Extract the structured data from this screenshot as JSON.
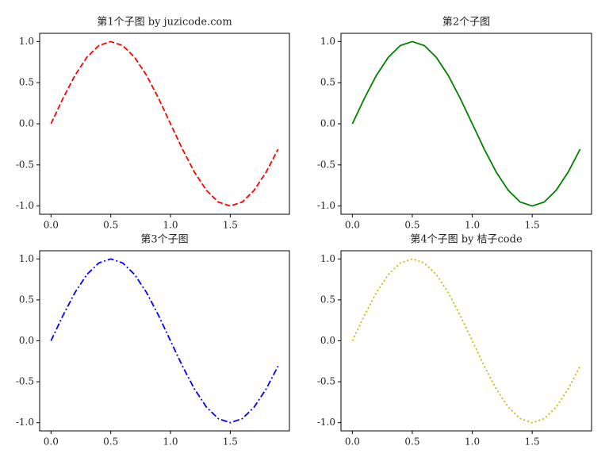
{
  "chart_data": [
    {
      "type": "line",
      "title": "第1个子图 by juzicode.com",
      "x": [
        0,
        0.1,
        0.2,
        0.3,
        0.4,
        0.5,
        0.6,
        0.7,
        0.8,
        0.9,
        1.0,
        1.1,
        1.2,
        1.3,
        1.4,
        1.5,
        1.6,
        1.7,
        1.8,
        1.9
      ],
      "series": [
        {
          "color": "#ff0000",
          "linestyle": "dashed",
          "values": [
            0,
            0.309,
            0.588,
            0.809,
            0.951,
            1,
            0.951,
            0.809,
            0.588,
            0.309,
            0,
            -0.309,
            -0.588,
            -0.809,
            -0.951,
            -1,
            -0.951,
            -0.809,
            -0.588,
            -0.309
          ]
        }
      ],
      "xlim": [
        -0.095,
        1.995
      ],
      "ylim": [
        -1.1,
        1.1
      ],
      "xticks": [
        {
          "value": 0,
          "label": "0.0"
        },
        0.5,
        {
          "value": 1,
          "label": "1.0"
        },
        1.5
      ],
      "yticks": [
        {
          "value": -1,
          "label": "-1.0"
        },
        -0.5,
        {
          "value": 0,
          "label": "0.0"
        },
        0.5,
        {
          "value": 1,
          "label": "1.0"
        }
      ]
    },
    {
      "type": "line",
      "title": "第2个子图",
      "x": [
        0,
        0.1,
        0.2,
        0.3,
        0.4,
        0.5,
        0.6,
        0.7,
        0.8,
        0.9,
        1.0,
        1.1,
        1.2,
        1.3,
        1.4,
        1.5,
        1.6,
        1.7,
        1.8,
        1.9
      ],
      "series": [
        {
          "color": "#008000",
          "linestyle": "solid",
          "values": [
            0,
            0.309,
            0.588,
            0.809,
            0.951,
            1,
            0.951,
            0.809,
            0.588,
            0.309,
            0,
            -0.309,
            -0.588,
            -0.809,
            -0.951,
            -1,
            -0.951,
            -0.809,
            -0.588,
            -0.309
          ]
        }
      ],
      "xlim": [
        -0.095,
        1.995
      ],
      "ylim": [
        -1.1,
        1.1
      ],
      "xticks": [
        {
          "value": 0,
          "label": "0.0"
        },
        0.5,
        {
          "value": 1,
          "label": "1.0"
        },
        1.5
      ],
      "yticks": [
        {
          "value": -1,
          "label": "-1.0"
        },
        -0.5,
        {
          "value": 0,
          "label": "0.0"
        },
        0.5,
        {
          "value": 1,
          "label": "1.0"
        }
      ]
    },
    {
      "type": "line",
      "title": "第3个子图",
      "x": [
        0,
        0.1,
        0.2,
        0.3,
        0.4,
        0.5,
        0.6,
        0.7,
        0.8,
        0.9,
        1.0,
        1.1,
        1.2,
        1.3,
        1.4,
        1.5,
        1.6,
        1.7,
        1.8,
        1.9
      ],
      "series": [
        {
          "color": "#0000ff",
          "linestyle": "dashdot",
          "values": [
            0,
            0.309,
            0.588,
            0.809,
            0.951,
            1,
            0.951,
            0.809,
            0.588,
            0.309,
            0,
            -0.309,
            -0.588,
            -0.809,
            -0.951,
            -1,
            -0.951,
            -0.809,
            -0.588,
            -0.309
          ]
        }
      ],
      "xlim": [
        -0.095,
        1.995
      ],
      "ylim": [
        -1.1,
        1.1
      ],
      "xticks": [
        {
          "value": 0,
          "label": "0.0"
        },
        0.5,
        {
          "value": 1,
          "label": "1.0"
        },
        1.5
      ],
      "yticks": [
        {
          "value": -1,
          "label": "-1.0"
        },
        -0.5,
        {
          "value": 0,
          "label": "0.0"
        },
        0.5,
        {
          "value": 1,
          "label": "1.0"
        }
      ]
    },
    {
      "type": "line",
      "title": "第4个子图 by 桔子code",
      "x": [
        0,
        0.1,
        0.2,
        0.3,
        0.4,
        0.5,
        0.6,
        0.7,
        0.8,
        0.9,
        1.0,
        1.1,
        1.2,
        1.3,
        1.4,
        1.5,
        1.6,
        1.7,
        1.8,
        1.9
      ],
      "series": [
        {
          "color": "#bfbf00",
          "linestyle": "dotted",
          "values": [
            0,
            0.309,
            0.588,
            0.809,
            0.951,
            1,
            0.951,
            0.809,
            0.588,
            0.309,
            0,
            -0.309,
            -0.588,
            -0.809,
            -0.951,
            -1,
            -0.951,
            -0.809,
            -0.588,
            -0.309
          ]
        }
      ],
      "xlim": [
        -0.095,
        1.995
      ],
      "ylim": [
        -1.1,
        1.1
      ],
      "xticks": [
        {
          "value": 0,
          "label": "0.0"
        },
        0.5,
        {
          "value": 1,
          "label": "1.0"
        },
        1.5
      ],
      "yticks": [
        {
          "value": -1,
          "label": "-1.0"
        },
        -0.5,
        {
          "value": 0,
          "label": "0.0"
        },
        0.5,
        {
          "value": 1,
          "label": "1.0"
        }
      ]
    }
  ]
}
